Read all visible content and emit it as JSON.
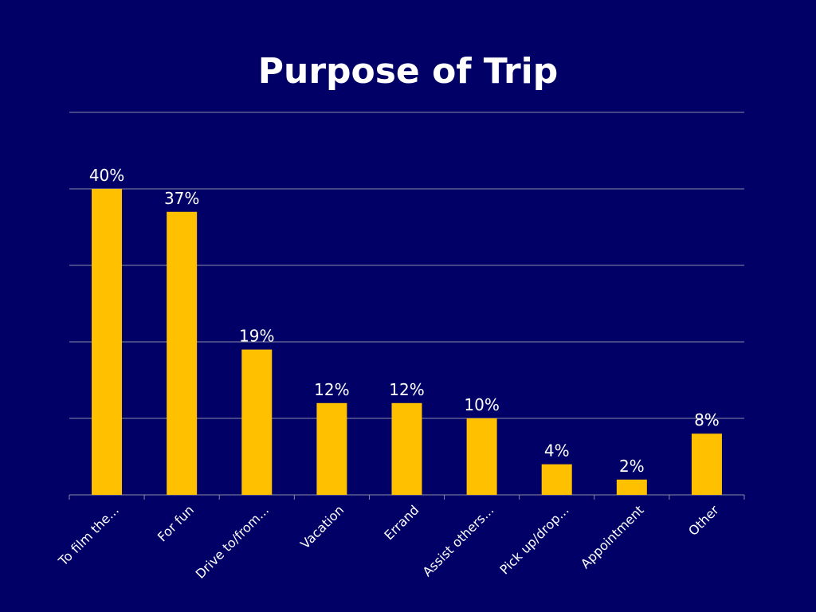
{
  "chart_data": {
    "type": "bar",
    "title": "Purpose of Trip",
    "xlabel": "",
    "ylabel": "",
    "categories": [
      "To film the...",
      "For fun",
      "Drive to/from...",
      "Vacation",
      "Errand",
      "Assist others...",
      "Pick up/drop...",
      "Appointment",
      "Other"
    ],
    "values": [
      40,
      37,
      19,
      12,
      12,
      10,
      4,
      2,
      8
    ],
    "data_labels": [
      "40%",
      "37%",
      "19%",
      "12%",
      "12%",
      "10%",
      "4%",
      "2%",
      "8%"
    ],
    "ylim": [
      0,
      50
    ],
    "y_gridlines": [
      0,
      10,
      20,
      30,
      40,
      50
    ],
    "grid": true,
    "legend": "none",
    "colors": {
      "background": "#000066",
      "bar": "#FFC000",
      "grid": "#8a8aa8",
      "text": "#FFFFFF"
    }
  }
}
